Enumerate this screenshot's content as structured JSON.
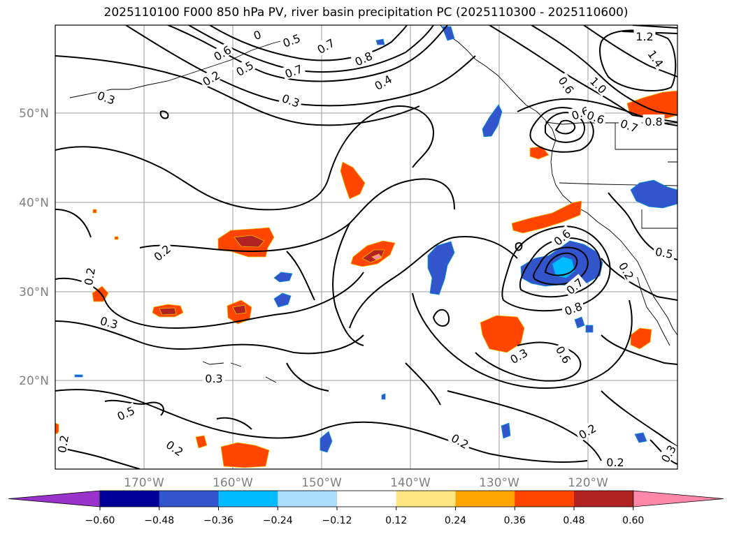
{
  "title": "2025110100 F000 850 hPa PV, river basin precipitation PC (2025110300 - 2025110600)",
  "map": {
    "lon_labels": [
      "170°W",
      "160°W",
      "150°W",
      "140°W",
      "130°W",
      "120°W"
    ],
    "lat_labels": [
      "50°N",
      "40°N",
      "30°N",
      "20°N"
    ],
    "label_color": "#808080",
    "contour_labels": [
      "0",
      "0.5",
      "0.7",
      "0.8",
      "1.2",
      "1.4",
      "0.6",
      "0.5",
      "0.2",
      "0.7",
      "0.4",
      "0.3",
      "0.3",
      "0.6",
      "1.0",
      "0.6",
      "0.6",
      "0.7",
      "0.8",
      "0.2",
      "0.2",
      "0.6",
      "0.7",
      "0.8",
      "0.5",
      "0.2",
      "0.3",
      "0.3",
      "0.6",
      "0.5",
      "0.2",
      "0.2",
      "0.2",
      "0.2",
      "0.2",
      "0.3",
      "0.3"
    ]
  },
  "colorbar": {
    "ticks": [
      "−0.60",
      "−0.48",
      "−0.36",
      "−0.24",
      "−0.12",
      "0.12",
      "0.24",
      "0.36",
      "0.48",
      "0.60"
    ],
    "colors": [
      "#9933cc",
      "#000099",
      "#3355cc",
      "#00bbff",
      "#aaddff",
      "#ffffff",
      "#ffe680",
      "#ffa500",
      "#ff4500",
      "#b22222",
      "#ff88aa"
    ]
  }
}
